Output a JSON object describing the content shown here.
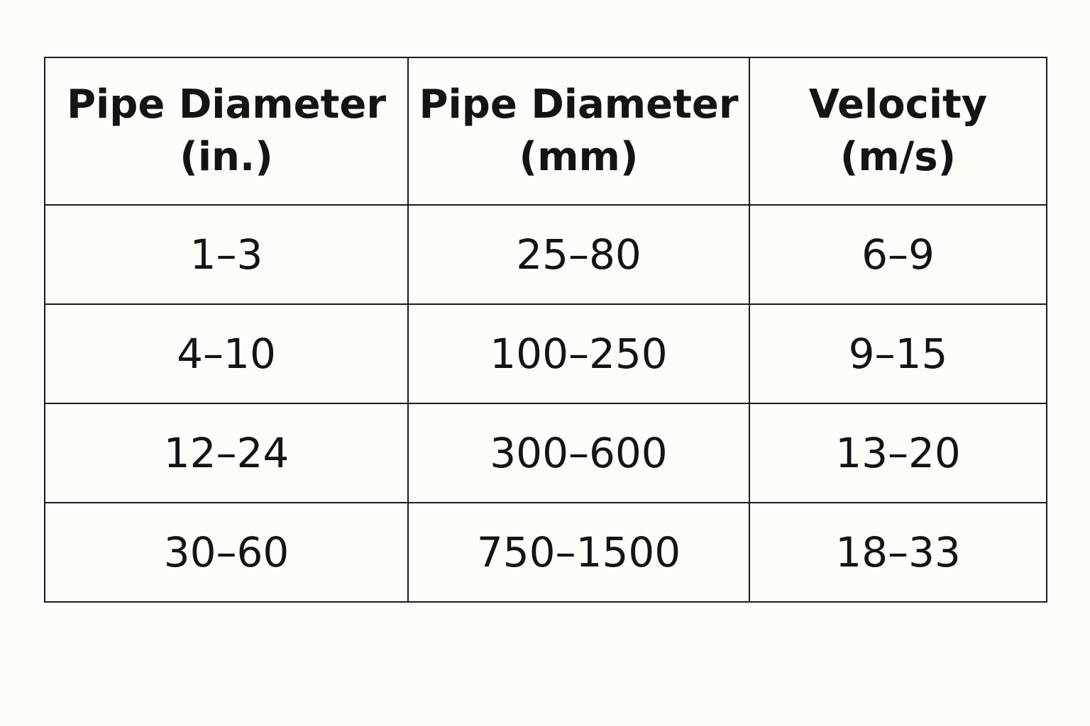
{
  "table": {
    "headers": [
      {
        "line1": "Pipe Diameter",
        "line2": "(in.)"
      },
      {
        "line1": "Pipe Diameter",
        "line2": "(mm)"
      },
      {
        "line1": "Velocity",
        "line2": "(m/s)"
      }
    ],
    "rows": [
      [
        "1–3",
        "25–80",
        "6–9"
      ],
      [
        "4–10",
        "100–250",
        "9–15"
      ],
      [
        "12–24",
        "300–600",
        "13–20"
      ],
      [
        "30–60",
        "750–1500",
        "18–33"
      ]
    ]
  }
}
